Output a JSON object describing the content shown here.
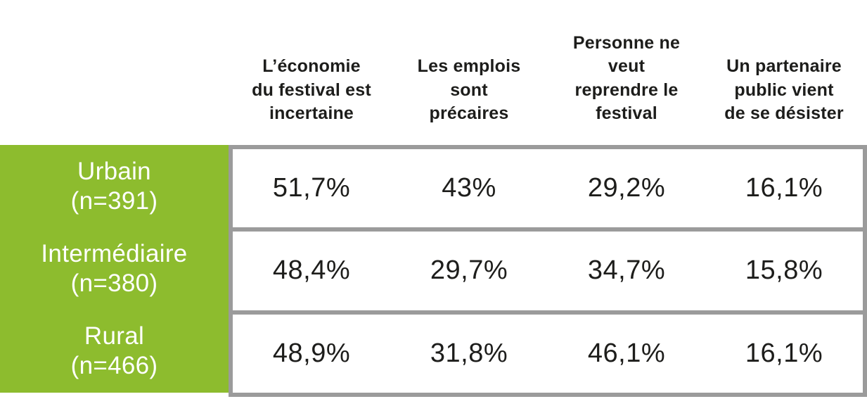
{
  "table": {
    "columns": [
      {
        "header": "L’économie\ndu festival est\nincertaine"
      },
      {
        "header": "Les emplois\nsont\nprécaires"
      },
      {
        "header": "Personne ne\nveut\nreprendre le\nfestival"
      },
      {
        "header": "Un partenaire\npublic vient\nde se désister"
      }
    ],
    "rows": [
      {
        "label": "Urbain\n(n=391)",
        "values": [
          "51,7%",
          "43%",
          "29,2%",
          "16,1%"
        ]
      },
      {
        "label": "Intermédiaire\n(n=380)",
        "values": [
          "48,4%",
          "29,7%",
          "34,7%",
          "15,8%"
        ]
      },
      {
        "label": "Rural\n(n=466)",
        "values": [
          "48,9%",
          "31,8%",
          "46,1%",
          "16,1%"
        ]
      }
    ]
  },
  "chart_data": {
    "type": "table",
    "columns": [
      "L’économie du festival est incertaine",
      "Les emplois sont précaires",
      "Personne ne veut reprendre le festival",
      "Un partenaire public vient de se désister"
    ],
    "rows": [
      "Urbain (n=391)",
      "Intermédiaire (n=380)",
      "Rural (n=466)"
    ],
    "values": [
      [
        51.7,
        43.0,
        29.2,
        16.1
      ],
      [
        48.4,
        29.7,
        34.7,
        15.8
      ],
      [
        48.9,
        31.8,
        46.1,
        16.1
      ]
    ],
    "value_unit": "%",
    "decimal_separator": ",",
    "row_sample_sizes": [
      391,
      380,
      466
    ]
  },
  "colors": {
    "row_label_bg": "#8dbc2e",
    "border": "#9b9b9b",
    "text": "#1d1d1b",
    "label_text": "#ffffff",
    "background": "#ffffff"
  }
}
